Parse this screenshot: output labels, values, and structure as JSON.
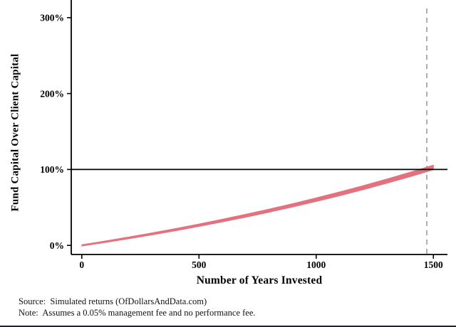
{
  "chart_data": {
    "type": "line",
    "title": "",
    "xlabel": "Number of Years Invested",
    "ylabel": "Fund Capital Over Client Capital",
    "x": [
      0,
      100,
      200,
      300,
      400,
      500,
      600,
      700,
      800,
      900,
      1000,
      1100,
      1200,
      1300,
      1400,
      1500
    ],
    "series": [
      {
        "name": "fund-capital-share",
        "values": [
          0,
          4.8,
          9.9,
          15.2,
          20.7,
          26.6,
          32.7,
          39.1,
          45.8,
          52.8,
          60.2,
          67.9,
          76.0,
          84.5,
          93.4,
          102.7
        ],
        "color": "#e4717e"
      }
    ],
    "xlim": [
      -45,
      1560
    ],
    "ylim": [
      -12,
      312
    ],
    "xticks": [
      {
        "value": 0,
        "label": "0"
      },
      {
        "value": 500,
        "label": "500"
      },
      {
        "value": 1000,
        "label": "1000"
      },
      {
        "value": 1500,
        "label": "1500"
      }
    ],
    "yticks": [
      {
        "value": 0,
        "label": "0%"
      },
      {
        "value": 100,
        "label": "100%"
      },
      {
        "value": 200,
        "label": "200%"
      },
      {
        "value": 300,
        "label": "300%"
      }
    ],
    "reference_lines": {
      "hline": {
        "y": 100,
        "color": "#000000",
        "style": "solid"
      },
      "vline": {
        "x": 1472,
        "color": "#9a9a9a",
        "style": "dashed"
      }
    },
    "grid": false,
    "legend": "none",
    "axis_color": "#000000",
    "tick_label_color": "#000000"
  },
  "footer": {
    "source": "Source:  Simulated returns (OfDollarsAndData.com)",
    "note": "Note:  Assumes a 0.05% management fee and no performance fee."
  }
}
